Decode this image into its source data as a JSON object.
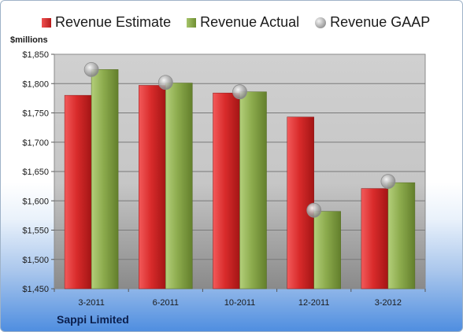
{
  "legend": {
    "estimate": "Revenue Estimate",
    "actual": "Revenue Actual",
    "gaap": "Revenue GAAP"
  },
  "unit_label": "$millions",
  "company": "Sappi Limited",
  "colors": {
    "estimate": "#d92b2b",
    "actual": "#8cab4d",
    "gaap": "#a8a8a8"
  },
  "chart_data": {
    "type": "bar",
    "categories": [
      "3-2011",
      "6-2011",
      "10-2011",
      "12-2011",
      "3-2012"
    ],
    "series": [
      {
        "name": "Revenue Estimate",
        "values": [
          1780,
          1797,
          1784,
          1743,
          1621
        ]
      },
      {
        "name": "Revenue Actual",
        "values": [
          1824,
          1801,
          1786,
          1582,
          1631
        ]
      },
      {
        "name": "Revenue GAAP",
        "type": "scatter",
        "values": [
          1824,
          1802,
          1786,
          1584,
          1633
        ]
      }
    ],
    "ylabel": "$millions",
    "ylim": [
      1450,
      1850
    ],
    "yticks": [
      "$1,450",
      "$1,500",
      "$1,550",
      "$1,600",
      "$1,650",
      "$1,700",
      "$1,750",
      "$1,800",
      "$1,850"
    ],
    "grid": true,
    "legend_position": "top"
  }
}
